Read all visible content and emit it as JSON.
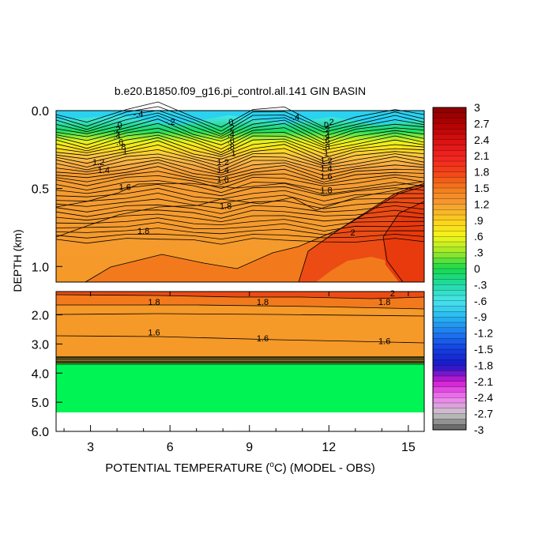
{
  "chart_data": {
    "type": "contour",
    "title": "b.e20.B1850.f09_g16.pi_control.all.141 GIN BASIN",
    "xlabel_pre": "POTENTIAL TEMPERATURE (",
    "xlabel_deg": "o",
    "xlabel_post": "C) (MODEL - OBS)",
    "ylabel": "DEPTH (km)",
    "x_ticks": [
      "3",
      "6",
      "9",
      "12",
      "15"
    ],
    "x_tick_values": [
      3,
      6,
      9,
      12,
      15
    ],
    "xlim": [
      1.7,
      15.6
    ],
    "upper_panel": {
      "ylim_km": [
        0.0,
        1.1
      ],
      "y_ticks": [
        "0.0",
        "0.5",
        "1.0"
      ],
      "y_tick_values": [
        0.0,
        0.5,
        1.0
      ]
    },
    "lower_panel": {
      "ylim_km": [
        1.2,
        6.0
      ],
      "y_ticks": [
        "2.0",
        "3.0",
        "4.0",
        "5.0",
        "6.0"
      ],
      "y_tick_values": [
        2.0,
        3.0,
        4.0,
        5.0,
        6.0
      ],
      "bottom_depth_km": 5.35
    },
    "colorbar": {
      "labels": [
        "3",
        "2.7",
        "2.4",
        "2.1",
        "1.8",
        "1.5",
        "1.2",
        ".9",
        ".6",
        ".3",
        "0",
        "-.3",
        "-.6",
        "-.9",
        "-1.2",
        "-1.5",
        "-1.8",
        "-2.1",
        "-2.4",
        "-2.7",
        "-3"
      ],
      "values": [
        3,
        2.7,
        2.4,
        2.1,
        1.8,
        1.5,
        1.2,
        0.9,
        0.6,
        0.3,
        0,
        -0.3,
        -0.6,
        -0.9,
        -1.2,
        -1.5,
        -1.8,
        -2.1,
        -2.4,
        -2.7,
        -3
      ],
      "range": [
        -3,
        3
      ]
    },
    "contour_labels": [
      {
        "text": "-.4",
        "x": 4.8,
        "depth_km": 0.02,
        "panel": "upper"
      },
      {
        "text": "-.2",
        "x": 6.0,
        "depth_km": 0.07,
        "panel": "upper"
      },
      {
        "text": "-.4",
        "x": 10.7,
        "depth_km": 0.04,
        "panel": "upper"
      },
      {
        "text": "-.2",
        "x": 12.0,
        "depth_km": 0.07,
        "panel": "upper"
      },
      {
        "text": "0",
        "x": 8.3,
        "depth_km": 0.07,
        "panel": "upper"
      },
      {
        "text": ".2",
        "x": 8.3,
        "depth_km": 0.11,
        "panel": "upper"
      },
      {
        "text": ".4",
        "x": 8.3,
        "depth_km": 0.15,
        "panel": "upper"
      },
      {
        "text": ".6",
        "x": 8.3,
        "depth_km": 0.19,
        "panel": "upper"
      },
      {
        "text": ".8",
        "x": 8.3,
        "depth_km": 0.23,
        "panel": "upper"
      },
      {
        "text": "1",
        "x": 8.4,
        "depth_km": 0.27,
        "panel": "upper"
      },
      {
        "text": "0",
        "x": 4.1,
        "depth_km": 0.09,
        "panel": "upper"
      },
      {
        "text": ".2",
        "x": 4.0,
        "depth_km": 0.12,
        "panel": "upper"
      },
      {
        "text": ".4",
        "x": 4.0,
        "depth_km": 0.16,
        "panel": "upper"
      },
      {
        "text": ".6",
        "x": 4.1,
        "depth_km": 0.2,
        "panel": "upper"
      },
      {
        "text": ".8",
        "x": 4.2,
        "depth_km": 0.23,
        "panel": "upper"
      },
      {
        "text": "1",
        "x": 4.3,
        "depth_km": 0.26,
        "panel": "upper"
      },
      {
        "text": "0",
        "x": 11.9,
        "depth_km": 0.09,
        "panel": "upper"
      },
      {
        "text": ".2",
        "x": 11.9,
        "depth_km": 0.12,
        "panel": "upper"
      },
      {
        "text": ".4",
        "x": 11.9,
        "depth_km": 0.16,
        "panel": "upper"
      },
      {
        "text": ".6",
        "x": 11.9,
        "depth_km": 0.19,
        "panel": "upper"
      },
      {
        "text": ".8",
        "x": 11.9,
        "depth_km": 0.23,
        "panel": "upper"
      },
      {
        "text": "1",
        "x": 11.9,
        "depth_km": 0.27,
        "panel": "upper"
      },
      {
        "text": "1.2",
        "x": 3.3,
        "depth_km": 0.33,
        "panel": "upper"
      },
      {
        "text": "1.4",
        "x": 3.5,
        "depth_km": 0.38,
        "panel": "upper"
      },
      {
        "text": "1.6",
        "x": 4.3,
        "depth_km": 0.49,
        "panel": "upper"
      },
      {
        "text": "1.2",
        "x": 8.0,
        "depth_km": 0.33,
        "panel": "upper"
      },
      {
        "text": "1.4",
        "x": 8.0,
        "depth_km": 0.38,
        "panel": "upper"
      },
      {
        "text": "1.6",
        "x": 8.0,
        "depth_km": 0.44,
        "panel": "upper"
      },
      {
        "text": "1.2",
        "x": 11.9,
        "depth_km": 0.32,
        "panel": "upper"
      },
      {
        "text": "1.4",
        "x": 11.9,
        "depth_km": 0.37,
        "panel": "upper"
      },
      {
        "text": "1.6",
        "x": 11.9,
        "depth_km": 0.42,
        "panel": "upper"
      },
      {
        "text": "1.8",
        "x": 11.9,
        "depth_km": 0.51,
        "panel": "upper"
      },
      {
        "text": "1.8",
        "x": 8.1,
        "depth_km": 0.61,
        "panel": "upper"
      },
      {
        "text": "1.8",
        "x": 5.0,
        "depth_km": 0.77,
        "panel": "upper"
      },
      {
        "text": "2",
        "x": 12.9,
        "depth_km": 0.78,
        "panel": "upper"
      },
      {
        "text": "2",
        "x": 14.4,
        "depth_km": 1.25,
        "panel": "lower"
      },
      {
        "text": "1.8",
        "x": 5.4,
        "depth_km": 1.55,
        "panel": "lower"
      },
      {
        "text": "1.8",
        "x": 9.5,
        "depth_km": 1.55,
        "panel": "lower"
      },
      {
        "text": "1.8",
        "x": 14.1,
        "depth_km": 1.55,
        "panel": "lower"
      },
      {
        "text": "1.6",
        "x": 5.4,
        "depth_km": 2.6,
        "panel": "lower"
      },
      {
        "text": "1.6",
        "x": 9.5,
        "depth_km": 2.8,
        "panel": "lower"
      },
      {
        "text": "1.6",
        "x": 14.1,
        "depth_km": 2.9,
        "panel": "lower"
      }
    ]
  }
}
